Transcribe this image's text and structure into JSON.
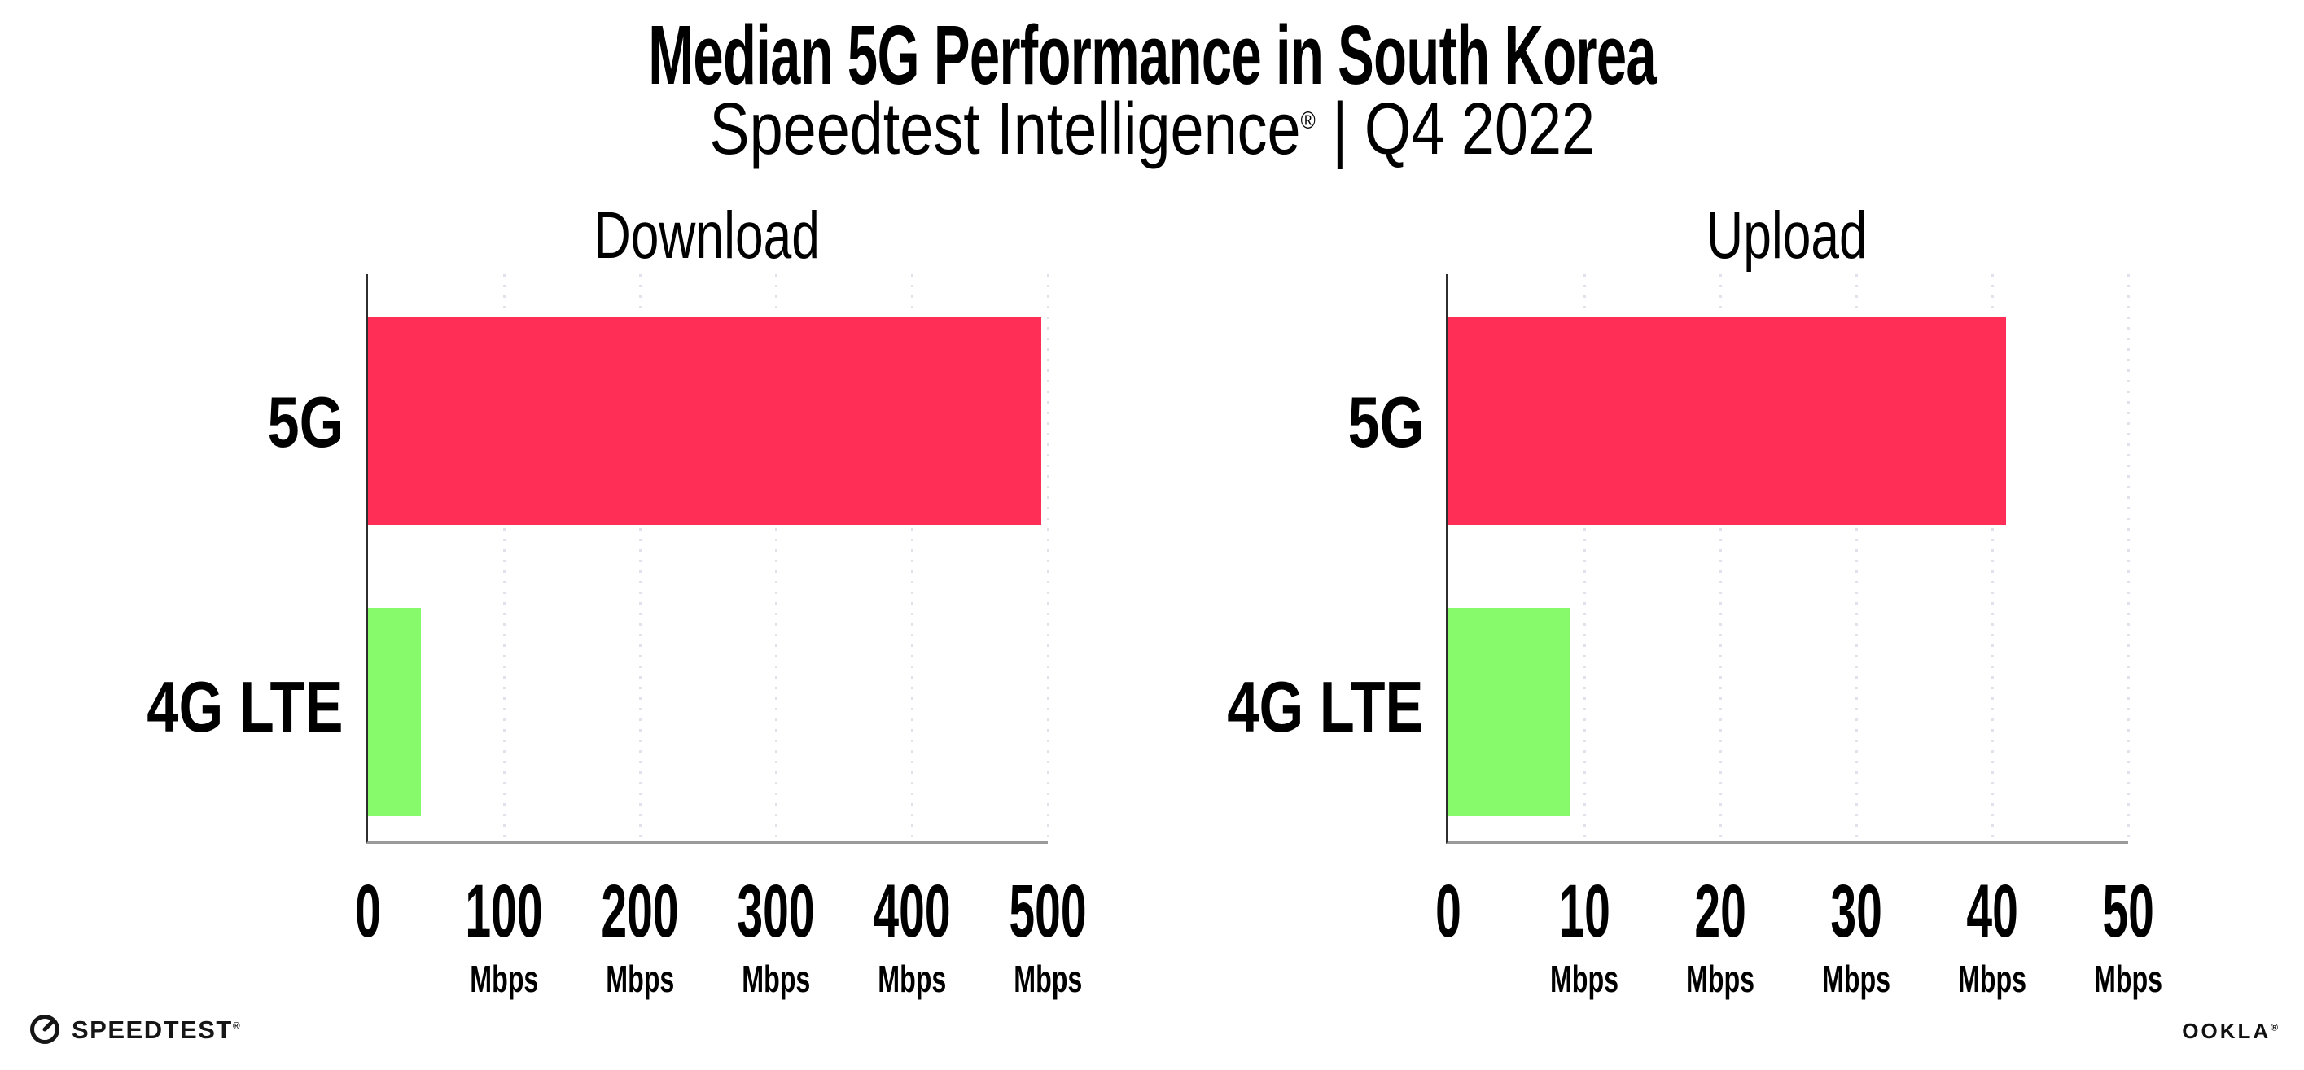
{
  "header": {
    "title": "Median 5G Performance in South Korea",
    "subtitle_product": "Speedtest Intelligence",
    "subtitle_mark": "®",
    "subtitle_rest": " | Q4 2022"
  },
  "chart_data": [
    {
      "type": "bar",
      "orientation": "horizontal",
      "title": "Download",
      "categories": [
        "5G",
        "4G LTE"
      ],
      "values": [
        495,
        39
      ],
      "unit": "Mbps",
      "xlim": [
        0,
        500
      ],
      "xticks": [
        0,
        100,
        200,
        300,
        400,
        500
      ],
      "grid": "vertical-dotted",
      "legend": "none",
      "bar_colors": [
        "#FF2E56",
        "#86FA6A"
      ]
    },
    {
      "type": "bar",
      "orientation": "horizontal",
      "title": "Upload",
      "categories": [
        "5G",
        "4G LTE"
      ],
      "values": [
        41,
        9
      ],
      "unit": "Mbps",
      "xlim": [
        0,
        50
      ],
      "xticks": [
        0,
        10,
        20,
        30,
        40,
        50
      ],
      "grid": "vertical-dotted",
      "legend": "none",
      "bar_colors": [
        "#FF2E56",
        "#86FA6A"
      ]
    }
  ],
  "footer": {
    "speedtest_label": "SPEEDTEST",
    "speedtest_mark": "®",
    "ookla_label": "OOKLA",
    "ookla_mark": "®"
  },
  "colors": {
    "bar_5g": "#FF2E56",
    "bar_4g_lte": "#86FA6A",
    "grid": "#E1E0EB",
    "axis_left": "#2E2E2E",
    "axis_bottom": "#9B9B9B",
    "background": "#FFFFFF",
    "text": "#000000"
  }
}
